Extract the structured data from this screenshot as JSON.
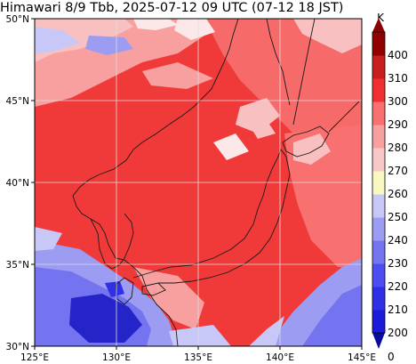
{
  "map": {
    "title": "Himawari 8/9 Tbb, 2025-07-12 09 UTC (07-12 18 JST)",
    "lon_min": 125,
    "lon_max": 145,
    "lat_min": 30,
    "lat_max": 50,
    "lon_ticks": [
      {
        "value": 125,
        "label": "125°E"
      },
      {
        "value": 130,
        "label": "130°E"
      },
      {
        "value": 135,
        "label": "135°E"
      },
      {
        "value": 140,
        "label": "140°E"
      },
      {
        "value": 145,
        "label": "145°E"
      }
    ],
    "lat_ticks": [
      {
        "value": 30,
        "label": "30°N"
      },
      {
        "value": 35,
        "label": "35°N"
      },
      {
        "value": 40,
        "label": "40°N"
      },
      {
        "value": 45,
        "label": "45°N"
      },
      {
        "value": 50,
        "label": "50°N"
      }
    ]
  },
  "colorbar": {
    "unit": "K",
    "levels": [
      {
        "value": 200,
        "label": "200",
        "color": "#1a1ad8"
      },
      {
        "value": 210,
        "label": "210",
        "color": "#2f2fe6"
      },
      {
        "value": 220,
        "label": "220",
        "color": "#4e4ef0"
      },
      {
        "value": 230,
        "label": "230",
        "color": "#7474f0"
      },
      {
        "value": 240,
        "label": "240",
        "color": "#9c9cf2"
      },
      {
        "value": 250,
        "label": "250",
        "color": "#c8c8f8"
      },
      {
        "value": 260,
        "label": "260",
        "color": "#f8f8c0"
      },
      {
        "value": 270,
        "label": "270",
        "color": "#f8c8c8"
      },
      {
        "value": 280,
        "label": "280",
        "color": "#f8a0a0"
      },
      {
        "value": 290,
        "label": "290",
        "color": "#f87070"
      },
      {
        "value": 300,
        "label": "300",
        "color": "#f03030"
      },
      {
        "value": 310,
        "label": "310",
        "color": "#c81e1e"
      },
      {
        "value": 400,
        "label": "400",
        "color": "#900000"
      }
    ],
    "lowest_label": "0",
    "under_color": "#0a0aa0",
    "over_color": "#8b0000"
  },
  "colors": {
    "warm_base": "#f03a3a",
    "warm_light": "#f66a6a",
    "cloud_pink": "#f8c0c0",
    "cloud_white": "#fce8e8",
    "cold_blue": "#5a5ae8",
    "cold_deep": "#2424c8",
    "coast": "#1a1a1a",
    "grid": "#dddddd"
  }
}
